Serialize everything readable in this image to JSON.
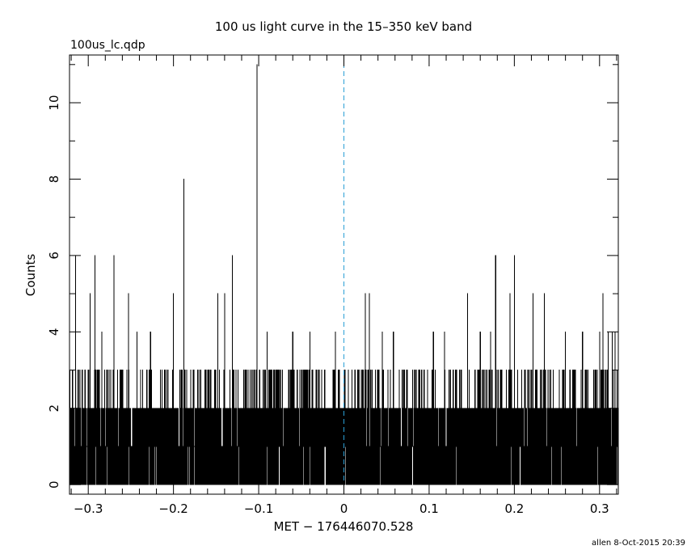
{
  "chart_data": {
    "type": "line",
    "title": "100 us light curve in the 15–350 keV band",
    "file_label": "100us_lc.qdp",
    "xlabel": "MET − 176446070.528",
    "ylabel": "Counts",
    "xlim": [
      -0.322,
      0.322
    ],
    "ylim": [
      -0.25,
      11.25
    ],
    "x_ticks": [
      -0.3,
      -0.2,
      -0.1,
      0,
      0.1,
      0.2,
      0.3
    ],
    "x_tick_labels": [
      "−0.3",
      "−0.2",
      "−0.1",
      "0",
      "0.1",
      "0.2",
      "0.3"
    ],
    "y_ticks": [
      0,
      2,
      4,
      6,
      8,
      10
    ],
    "y_tick_labels": [
      "0",
      "2",
      "4",
      "6",
      "8",
      "10"
    ],
    "bin_width": 0.0001,
    "reference_line_x": 0,
    "series": [
      {
        "type": "step",
        "x_start": -0.322,
        "x_end": 0.322,
        "peaks": [
          {
            "x": -0.3185,
            "y": 3
          },
          {
            "x": -0.315,
            "y": 6
          },
          {
            "x": -0.311,
            "y": 3
          },
          {
            "x": -0.298,
            "y": 5
          },
          {
            "x": -0.292,
            "y": 6
          },
          {
            "x": -0.284,
            "y": 4
          },
          {
            "x": -0.27,
            "y": 6
          },
          {
            "x": -0.253,
            "y": 5
          },
          {
            "x": -0.243,
            "y": 4
          },
          {
            "x": -0.227,
            "y": 4
          },
          {
            "x": -0.2,
            "y": 5
          },
          {
            "x": -0.188,
            "y": 8
          },
          {
            "x": -0.148,
            "y": 5
          },
          {
            "x": -0.14,
            "y": 5
          },
          {
            "x": -0.131,
            "y": 6
          },
          {
            "x": -0.102,
            "y": 11
          },
          {
            "x": -0.09,
            "y": 4
          },
          {
            "x": -0.06,
            "y": 4
          },
          {
            "x": -0.04,
            "y": 4
          },
          {
            "x": -0.01,
            "y": 4
          },
          {
            "x": 0.025,
            "y": 5
          },
          {
            "x": 0.03,
            "y": 5
          },
          {
            "x": 0.045,
            "y": 4
          },
          {
            "x": 0.058,
            "y": 4
          },
          {
            "x": 0.105,
            "y": 4
          },
          {
            "x": 0.118,
            "y": 4
          },
          {
            "x": 0.145,
            "y": 5
          },
          {
            "x": 0.16,
            "y": 4
          },
          {
            "x": 0.172,
            "y": 4
          },
          {
            "x": 0.178,
            "y": 6
          },
          {
            "x": 0.195,
            "y": 5
          },
          {
            "x": 0.2,
            "y": 6
          },
          {
            "x": 0.222,
            "y": 5
          },
          {
            "x": 0.235,
            "y": 5
          },
          {
            "x": 0.26,
            "y": 4
          },
          {
            "x": 0.28,
            "y": 4
          },
          {
            "x": 0.3,
            "y": 4
          },
          {
            "x": 0.304,
            "y": 5
          },
          {
            "x": 0.31,
            "y": 4
          },
          {
            "x": 0.315,
            "y": 4
          },
          {
            "x": 0.318,
            "y": 4
          }
        ]
      }
    ]
  },
  "footer": {
    "stamp": "allen  8-Oct-2015 20:39"
  }
}
